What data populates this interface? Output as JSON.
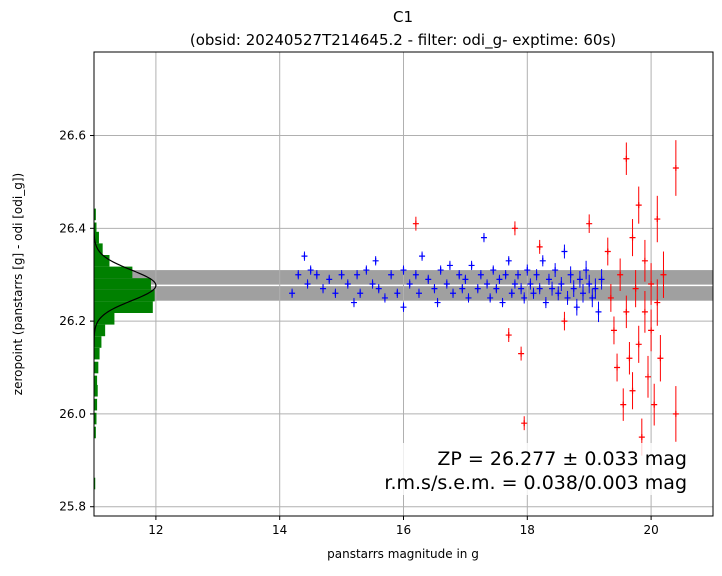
{
  "chart_data": {
    "type": "scatter",
    "title": "C1",
    "subtitle": "(obsid: 20240527T214645.2 - filter: odi_g- exptime: 60s)",
    "xlabel": "panstarrs magnitude in g",
    "ylabel": "zeropoint (panstarrs [g] - odi [odi_g])",
    "xlim": [
      11.0,
      21.0
    ],
    "ylim": [
      25.78,
      26.78
    ],
    "x_ticks": [
      "12",
      "14",
      "16",
      "18",
      "20"
    ],
    "y_ticks": [
      "25.8",
      "26.0",
      "26.2",
      "26.4",
      "26.6"
    ],
    "grid": true,
    "zeropoint": 26.277,
    "zeropoint_band": [
      26.244,
      26.31
    ],
    "annotation_lines": [
      "ZP = 26.277 ± 0.033 mag",
      "r.m.s/s.e.m. = 0.038/0.003 mag"
    ],
    "colors": {
      "used_stars": "#0000ff",
      "rejected_stars": "#ff0000",
      "histogram": "#008000",
      "gaussian_fit": "#000000",
      "zp_band": "#a0a0a0",
      "zp_line": "#ffffff"
    },
    "histogram": {
      "bins": [
        {
          "y": 25.85,
          "count": 0.02
        },
        {
          "y": 25.96,
          "count": 0.03
        },
        {
          "y": 25.99,
          "count": 0.04
        },
        {
          "y": 26.02,
          "count": 0.05
        },
        {
          "y": 26.05,
          "count": 0.06
        },
        {
          "y": 26.07,
          "count": 0.05
        },
        {
          "y": 26.1,
          "count": 0.07
        },
        {
          "y": 26.13,
          "count": 0.09
        },
        {
          "y": 26.155,
          "count": 0.12
        },
        {
          "y": 26.18,
          "count": 0.18
        },
        {
          "y": 26.205,
          "count": 0.33
        },
        {
          "y": 26.23,
          "count": 0.95
        },
        {
          "y": 26.255,
          "count": 0.98
        },
        {
          "y": 26.28,
          "count": 0.92
        },
        {
          "y": 26.305,
          "count": 0.62
        },
        {
          "y": 26.33,
          "count": 0.25
        },
        {
          "y": 26.355,
          "count": 0.14
        },
        {
          "y": 26.38,
          "count": 0.08
        },
        {
          "y": 26.4,
          "count": 0.04
        },
        {
          "y": 26.43,
          "count": 0.03
        }
      ],
      "gaussian": {
        "mean": 26.277,
        "sigma": 0.033,
        "peak_x": 12.0
      }
    },
    "series": [
      {
        "name": "used",
        "points": [
          [
            14.2,
            26.26,
            0.01
          ],
          [
            14.3,
            26.3,
            0.01
          ],
          [
            14.4,
            26.34,
            0.01
          ],
          [
            14.45,
            26.28,
            0.01
          ],
          [
            14.5,
            26.31,
            0.01
          ],
          [
            14.6,
            26.3,
            0.01
          ],
          [
            14.7,
            26.27,
            0.01
          ],
          [
            14.8,
            26.29,
            0.01
          ],
          [
            14.9,
            26.26,
            0.01
          ],
          [
            15.0,
            26.3,
            0.01
          ],
          [
            15.1,
            26.28,
            0.01
          ],
          [
            15.2,
            26.24,
            0.01
          ],
          [
            15.25,
            26.3,
            0.01
          ],
          [
            15.3,
            26.26,
            0.01
          ],
          [
            15.4,
            26.31,
            0.01
          ],
          [
            15.5,
            26.28,
            0.01
          ],
          [
            15.55,
            26.33,
            0.01
          ],
          [
            15.6,
            26.27,
            0.01
          ],
          [
            15.7,
            26.25,
            0.01
          ],
          [
            15.8,
            26.3,
            0.01
          ],
          [
            15.9,
            26.26,
            0.01
          ],
          [
            16.0,
            26.31,
            0.01
          ],
          [
            16.0,
            26.23,
            0.01
          ],
          [
            16.1,
            26.28,
            0.01
          ],
          [
            16.2,
            26.3,
            0.01
          ],
          [
            16.25,
            26.26,
            0.01
          ],
          [
            16.3,
            26.34,
            0.01
          ],
          [
            16.4,
            26.29,
            0.01
          ],
          [
            16.5,
            26.27,
            0.01
          ],
          [
            16.55,
            26.24,
            0.01
          ],
          [
            16.6,
            26.31,
            0.01
          ],
          [
            16.7,
            26.28,
            0.01
          ],
          [
            16.75,
            26.32,
            0.01
          ],
          [
            16.8,
            26.26,
            0.01
          ],
          [
            16.9,
            26.3,
            0.01
          ],
          [
            16.95,
            26.27,
            0.01
          ],
          [
            17.0,
            26.29,
            0.01
          ],
          [
            17.05,
            26.25,
            0.01
          ],
          [
            17.1,
            26.32,
            0.01
          ],
          [
            17.2,
            26.27,
            0.01
          ],
          [
            17.25,
            26.3,
            0.01
          ],
          [
            17.3,
            26.38,
            0.01
          ],
          [
            17.35,
            26.28,
            0.01
          ],
          [
            17.4,
            26.25,
            0.01
          ],
          [
            17.45,
            26.31,
            0.01
          ],
          [
            17.5,
            26.27,
            0.01
          ],
          [
            17.55,
            26.29,
            0.01
          ],
          [
            17.6,
            26.24,
            0.01
          ],
          [
            17.65,
            26.3,
            0.01
          ],
          [
            17.7,
            26.33,
            0.01
          ],
          [
            17.75,
            26.26,
            0.01
          ],
          [
            17.8,
            26.28,
            0.01
          ],
          [
            17.85,
            26.3,
            0.01
          ],
          [
            17.9,
            26.27,
            0.012
          ],
          [
            17.95,
            26.25,
            0.012
          ],
          [
            18.0,
            26.31,
            0.012
          ],
          [
            18.05,
            26.28,
            0.012
          ],
          [
            18.1,
            26.26,
            0.012
          ],
          [
            18.15,
            26.3,
            0.012
          ],
          [
            18.2,
            26.27,
            0.012
          ],
          [
            18.25,
            26.33,
            0.012
          ],
          [
            18.3,
            26.24,
            0.012
          ],
          [
            18.35,
            26.29,
            0.012
          ],
          [
            18.4,
            26.27,
            0.015
          ],
          [
            18.45,
            26.31,
            0.015
          ],
          [
            18.5,
            26.26,
            0.015
          ],
          [
            18.55,
            26.28,
            0.015
          ],
          [
            18.6,
            26.35,
            0.015
          ],
          [
            18.65,
            26.25,
            0.015
          ],
          [
            18.7,
            26.3,
            0.018
          ],
          [
            18.75,
            26.27,
            0.018
          ],
          [
            18.8,
            26.23,
            0.018
          ],
          [
            18.85,
            26.29,
            0.018
          ],
          [
            18.9,
            26.26,
            0.02
          ],
          [
            18.95,
            26.31,
            0.02
          ],
          [
            19.0,
            26.28,
            0.02
          ],
          [
            19.05,
            26.25,
            0.02
          ],
          [
            19.1,
            26.27,
            0.022
          ],
          [
            19.15,
            26.22,
            0.022
          ],
          [
            19.2,
            26.29,
            0.022
          ]
        ]
      },
      {
        "name": "rejected",
        "points": [
          [
            16.2,
            26.41,
            0.015
          ],
          [
            17.7,
            26.17,
            0.015
          ],
          [
            17.8,
            26.4,
            0.015
          ],
          [
            17.9,
            26.13,
            0.015
          ],
          [
            17.95,
            25.98,
            0.015
          ],
          [
            18.2,
            26.36,
            0.015
          ],
          [
            18.6,
            26.2,
            0.02
          ],
          [
            19.0,
            26.41,
            0.02
          ],
          [
            19.3,
            26.35,
            0.03
          ],
          [
            19.35,
            26.25,
            0.03
          ],
          [
            19.4,
            26.18,
            0.03
          ],
          [
            19.45,
            26.1,
            0.03
          ],
          [
            19.5,
            26.3,
            0.035
          ],
          [
            19.55,
            26.02,
            0.035
          ],
          [
            19.6,
            26.22,
            0.035
          ],
          [
            19.6,
            26.55,
            0.035
          ],
          [
            19.65,
            26.12,
            0.035
          ],
          [
            19.7,
            26.38,
            0.04
          ],
          [
            19.7,
            26.05,
            0.04
          ],
          [
            19.75,
            26.27,
            0.04
          ],
          [
            19.8,
            26.15,
            0.04
          ],
          [
            19.8,
            26.45,
            0.04
          ],
          [
            19.85,
            25.95,
            0.04
          ],
          [
            19.9,
            26.22,
            0.045
          ],
          [
            19.9,
            26.33,
            0.045
          ],
          [
            19.95,
            26.08,
            0.045
          ],
          [
            20.0,
            26.18,
            0.045
          ],
          [
            20.0,
            26.28,
            0.045
          ],
          [
            20.05,
            26.02,
            0.045
          ],
          [
            20.1,
            26.24,
            0.05
          ],
          [
            20.1,
            26.42,
            0.05
          ],
          [
            20.15,
            26.12,
            0.05
          ],
          [
            20.2,
            26.3,
            0.05
          ],
          [
            20.4,
            26.53,
            0.06
          ],
          [
            20.4,
            26.0,
            0.06
          ]
        ]
      }
    ]
  }
}
